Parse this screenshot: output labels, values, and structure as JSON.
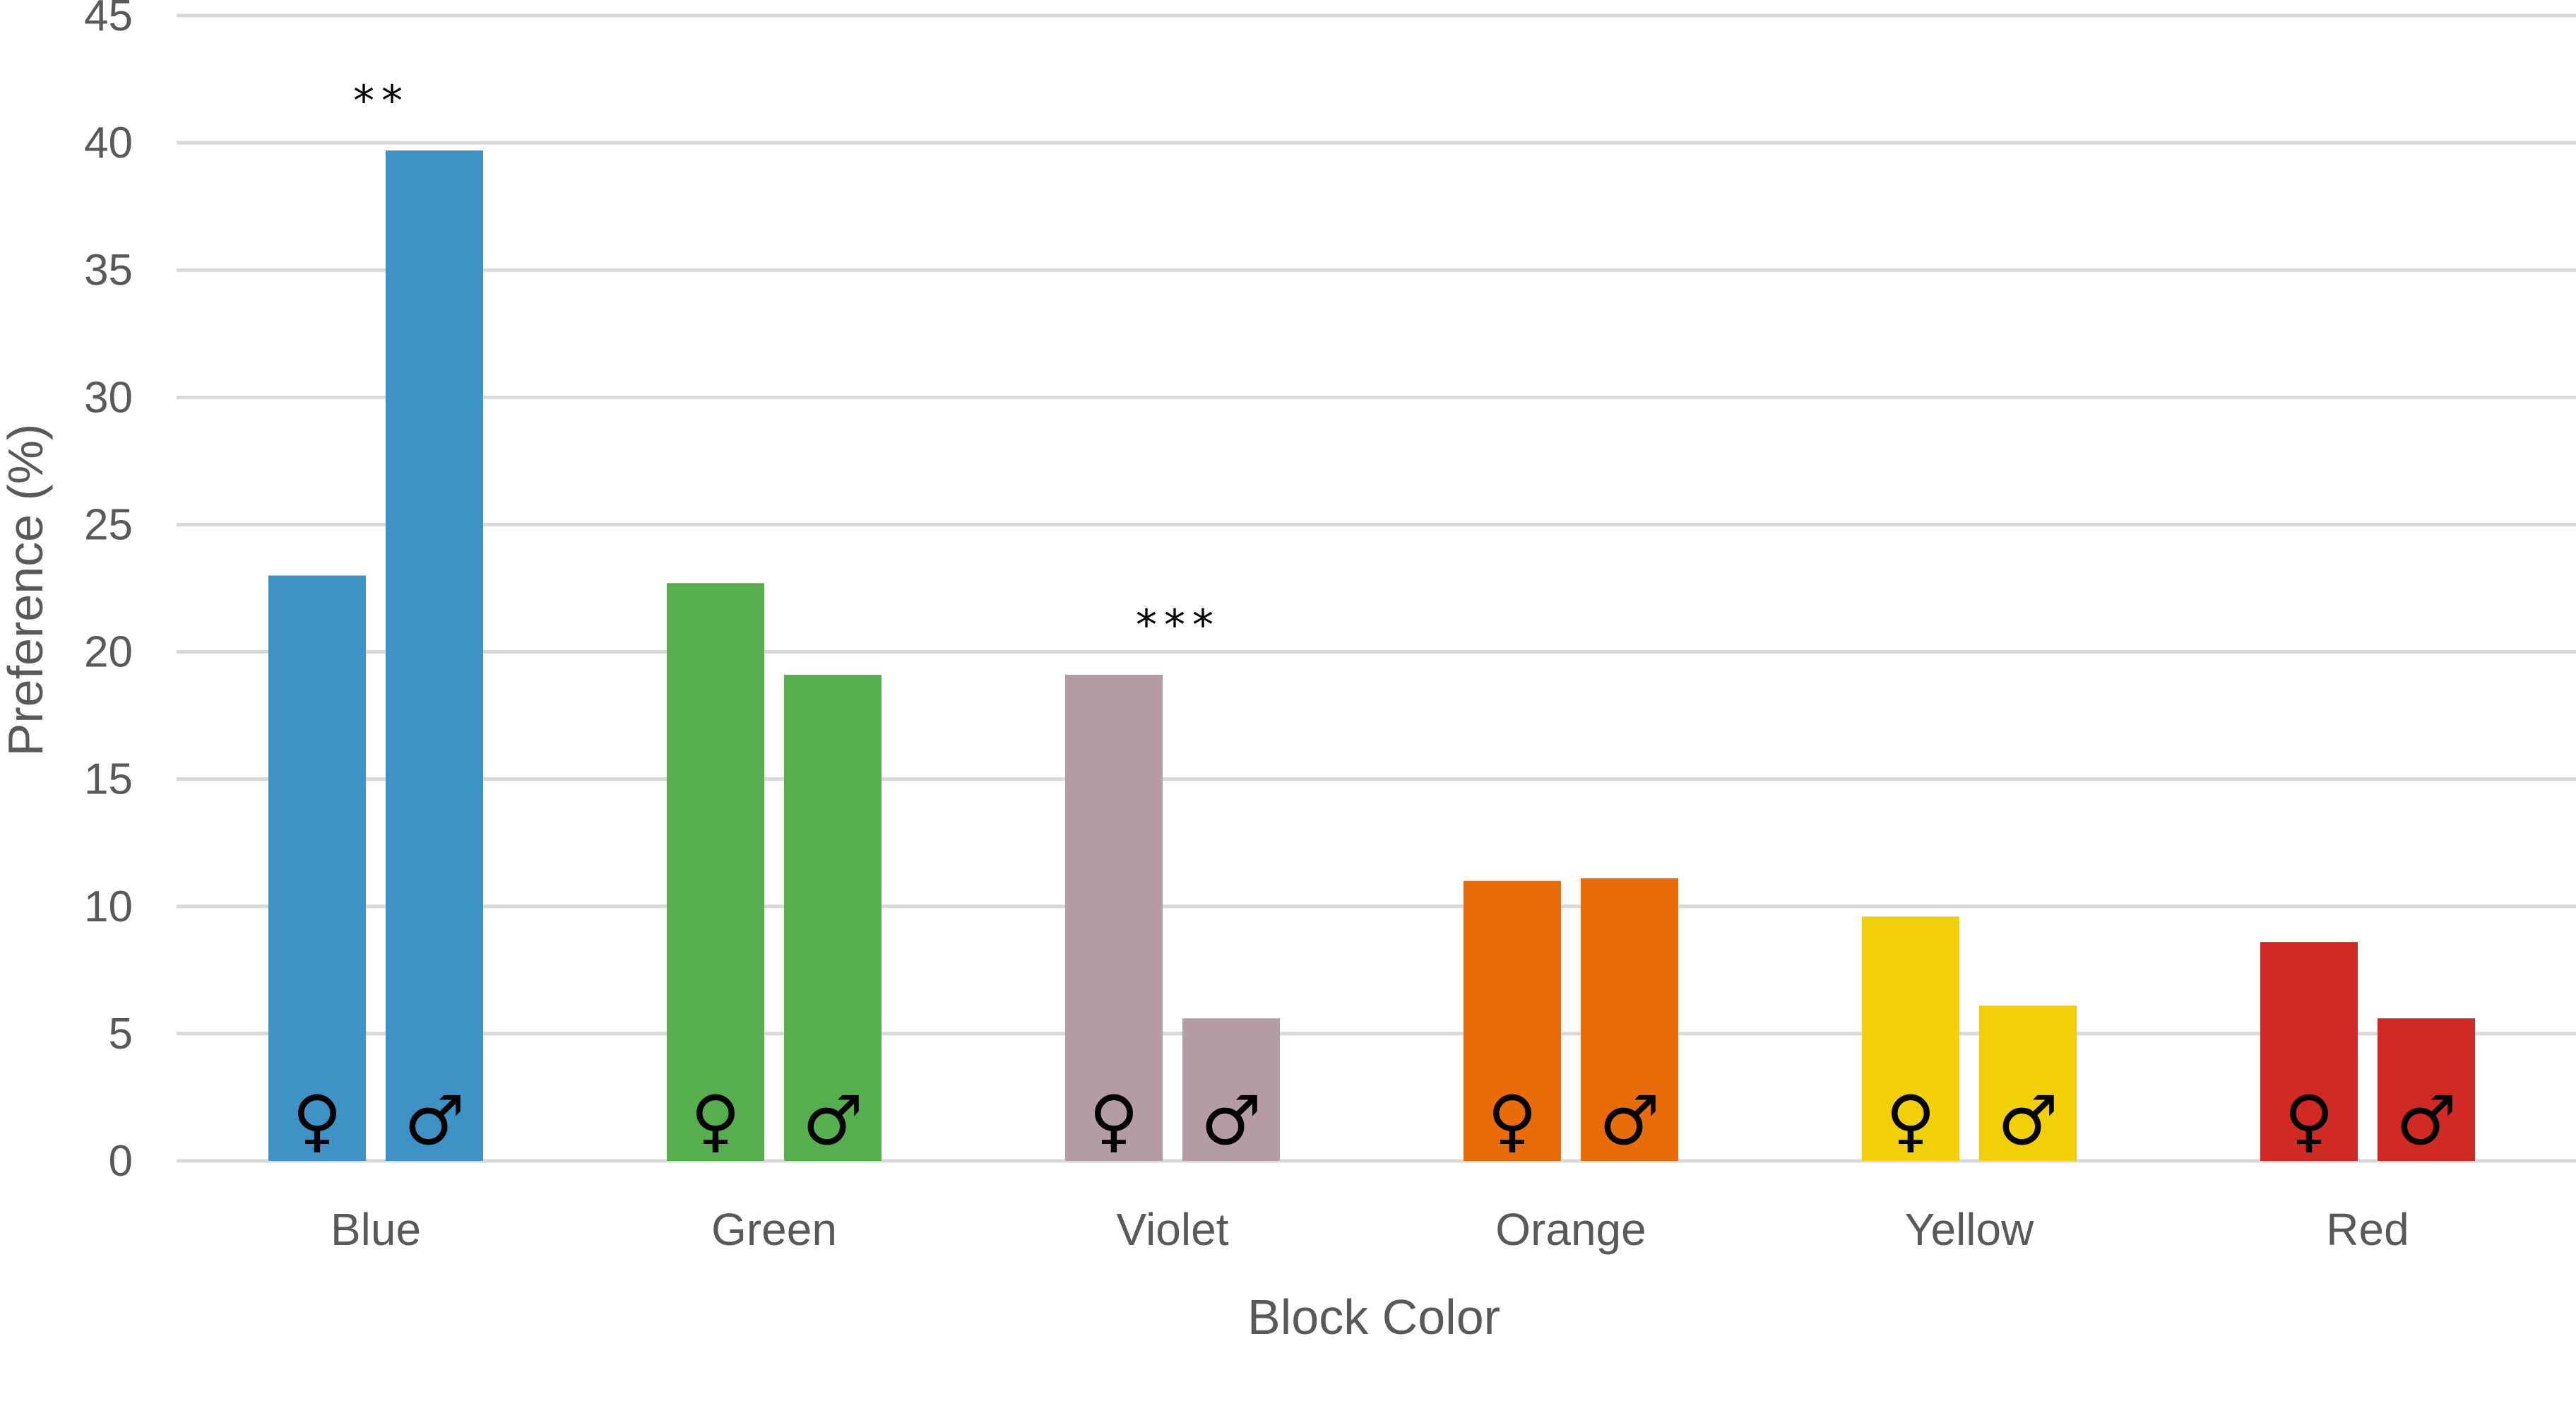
{
  "chart_data": {
    "type": "bar",
    "title": "",
    "xlabel": "Block Color",
    "ylabel": "Preference (%)",
    "ylim": [
      0,
      45
    ],
    "yticks": [
      0,
      5,
      10,
      15,
      20,
      25,
      30,
      35,
      40,
      45
    ],
    "grid": true,
    "categories": [
      "Blue",
      "Green",
      "Violet",
      "Orange",
      "Yellow",
      "Red"
    ],
    "category_colors": [
      "#3f92c6",
      "#56ae4f",
      "#b39ca3",
      "#e86c0a",
      "#f1cf09",
      "#d12a24"
    ],
    "series": [
      {
        "symbol": "♀",
        "values": [
          23.0,
          22.7,
          19.1,
          11.0,
          9.6,
          8.6
        ]
      },
      {
        "symbol": "♂",
        "values": [
          39.7,
          19.1,
          5.6,
          11.1,
          6.1,
          5.6
        ]
      }
    ],
    "annotations": [
      {
        "category": "Blue",
        "text": "**"
      },
      {
        "category": "Violet",
        "text": "***"
      }
    ]
  }
}
